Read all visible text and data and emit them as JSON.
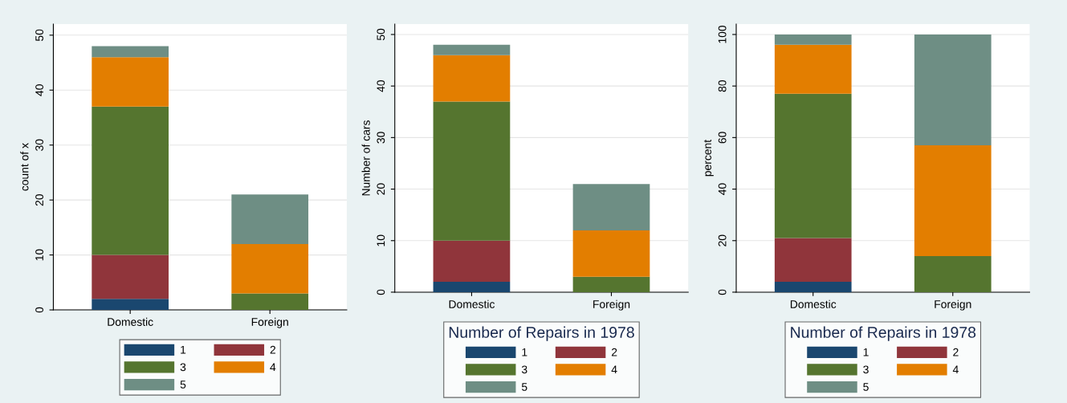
{
  "chart_data": [
    {
      "type": "bar",
      "stacked": true,
      "ylabel": "count of x",
      "categories": [
        "Domestic",
        "Foreign"
      ],
      "ylim": [
        0,
        52
      ],
      "yticks": [
        0,
        10,
        20,
        30,
        40,
        50
      ],
      "grid": "y",
      "legend": "bottom",
      "series": [
        {
          "name": "1",
          "color": "#1a476f",
          "values": [
            2,
            0
          ]
        },
        {
          "name": "2",
          "color": "#90353b",
          "values": [
            8,
            0
          ]
        },
        {
          "name": "3",
          "color": "#55752f",
          "values": [
            27,
            3
          ]
        },
        {
          "name": "4",
          "color": "#e37e00",
          "values": [
            9,
            9
          ]
        },
        {
          "name": "5",
          "color": "#6e8e84",
          "values": [
            2,
            9
          ]
        }
      ]
    },
    {
      "type": "bar",
      "stacked": true,
      "ylabel": "Number of cars",
      "legend_title": "Number of Repairs in 1978",
      "categories": [
        "Domestic",
        "Foreign"
      ],
      "ylim": [
        0,
        52
      ],
      "yticks": [
        0,
        10,
        20,
        30,
        40,
        50
      ],
      "grid": "y",
      "legend": "bottom",
      "series": [
        {
          "name": "1",
          "color": "#1a476f",
          "values": [
            2,
            0
          ]
        },
        {
          "name": "2",
          "color": "#90353b",
          "values": [
            8,
            0
          ]
        },
        {
          "name": "3",
          "color": "#55752f",
          "values": [
            27,
            3
          ]
        },
        {
          "name": "4",
          "color": "#e37e00",
          "values": [
            9,
            9
          ]
        },
        {
          "name": "5",
          "color": "#6e8e84",
          "values": [
            2,
            9
          ]
        }
      ]
    },
    {
      "type": "bar",
      "stacked": true,
      "ylabel": "percent",
      "legend_title": "Number of Repairs in 1978",
      "categories": [
        "Domestic",
        "Foreign"
      ],
      "ylim": [
        0,
        104
      ],
      "yticks": [
        0,
        20,
        40,
        60,
        80,
        100
      ],
      "grid": "y",
      "legend": "bottom",
      "series": [
        {
          "name": "1",
          "color": "#1a476f",
          "values": [
            4,
            0
          ]
        },
        {
          "name": "2",
          "color": "#90353b",
          "values": [
            17,
            0
          ]
        },
        {
          "name": "3",
          "color": "#55752f",
          "values": [
            56,
            14
          ]
        },
        {
          "name": "4",
          "color": "#e37e00",
          "values": [
            19,
            43
          ]
        },
        {
          "name": "5",
          "color": "#6e8e84",
          "values": [
            4,
            43
          ]
        }
      ]
    }
  ]
}
